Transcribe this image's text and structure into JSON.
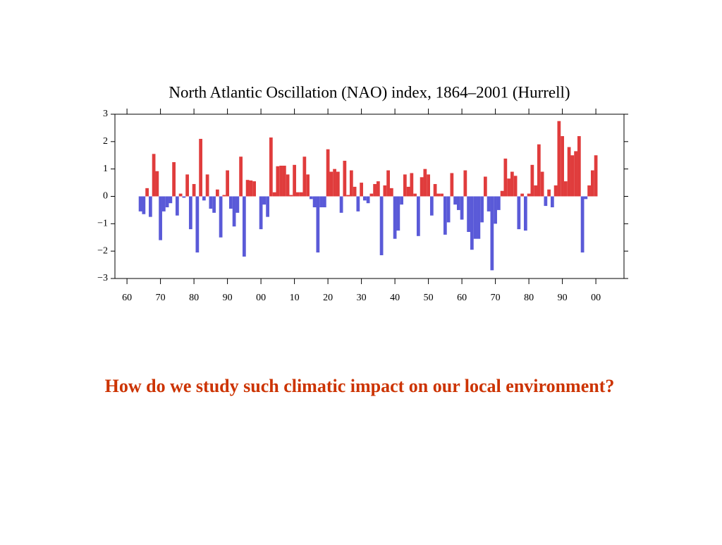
{
  "chart_data": {
    "type": "bar",
    "title": "North Atlantic Oscillation (NAO) index, 1864–2001 (Hurrell)",
    "x": [
      1864,
      1865,
      1866,
      1867,
      1868,
      1869,
      1870,
      1871,
      1872,
      1873,
      1874,
      1875,
      1876,
      1877,
      1878,
      1879,
      1880,
      1881,
      1882,
      1883,
      1884,
      1885,
      1886,
      1887,
      1888,
      1889,
      1890,
      1891,
      1892,
      1893,
      1894,
      1895,
      1896,
      1897,
      1898,
      1899,
      1900,
      1901,
      1902,
      1903,
      1904,
      1905,
      1906,
      1907,
      1908,
      1909,
      1910,
      1911,
      1912,
      1913,
      1914,
      1915,
      1916,
      1917,
      1918,
      1919,
      1920,
      1921,
      1922,
      1923,
      1924,
      1925,
      1926,
      1927,
      1928,
      1929,
      1930,
      1931,
      1932,
      1933,
      1934,
      1935,
      1936,
      1937,
      1938,
      1939,
      1940,
      1941,
      1942,
      1943,
      1944,
      1945,
      1946,
      1947,
      1948,
      1949,
      1950,
      1951,
      1952,
      1953,
      1954,
      1955,
      1956,
      1957,
      1958,
      1959,
      1960,
      1961,
      1962,
      1963,
      1964,
      1965,
      1966,
      1967,
      1968,
      1969,
      1970,
      1971,
      1972,
      1973,
      1974,
      1975,
      1976,
      1977,
      1978,
      1979,
      1980,
      1981,
      1982,
      1983,
      1984,
      1985,
      1986,
      1987,
      1988,
      1989,
      1990,
      1991,
      1992,
      1993,
      1994,
      1995,
      1996,
      1997,
      1998,
      1999,
      2000,
      2001
    ],
    "values": [
      -0.55,
      -0.65,
      0.3,
      -0.75,
      1.55,
      0.92,
      -1.6,
      -0.55,
      -0.4,
      -0.25,
      1.25,
      -0.7,
      0.1,
      -0.05,
      0.8,
      -1.2,
      0.45,
      -2.05,
      2.1,
      -0.15,
      0.8,
      -0.45,
      -0.6,
      0.25,
      -1.5,
      0.05,
      0.95,
      -0.45,
      -1.1,
      -0.6,
      1.45,
      -2.2,
      0.6,
      0.58,
      0.55,
      0,
      -1.2,
      -0.3,
      -0.75,
      2.15,
      0.15,
      1.1,
      1.12,
      1.12,
      0.8,
      0.05,
      1.15,
      0.15,
      0.15,
      1.45,
      0.8,
      -0.1,
      -0.4,
      -2.05,
      -0.4,
      -0.4,
      1.72,
      0.9,
      1.0,
      0.9,
      -0.6,
      1.3,
      0.05,
      0.95,
      0.35,
      -0.55,
      0.5,
      -0.15,
      -0.25,
      0.1,
      0.45,
      0.55,
      -2.15,
      0.4,
      0.95,
      0.3,
      -1.55,
      -1.25,
      -0.3,
      0.8,
      0.35,
      0.85,
      0.1,
      -1.45,
      0.7,
      1.0,
      0.8,
      -0.7,
      0.45,
      0.1,
      0.1,
      -1.4,
      -0.95,
      0.85,
      -0.3,
      -0.5,
      -0.85,
      0.95,
      -1.3,
      -1.95,
      -1.55,
      -1.55,
      -0.95,
      0.72,
      -0.55,
      -2.7,
      -1.0,
      -0.5,
      0.2,
      1.38,
      0.65,
      0.9,
      0.75,
      -1.2,
      0.1,
      -1.25,
      0.1,
      1.15,
      0.4,
      1.9,
      0.9,
      -0.35,
      0.25,
      -0.4,
      0.4,
      2.75,
      2.2,
      0.55,
      1.8,
      1.5,
      1.65,
      2.2,
      -2.05,
      -0.1,
      0.4,
      0.95,
      1.5,
      0
    ],
    "colors": {
      "positive": "#e03c3c",
      "negative": "#5a5ad8"
    },
    "xlim": [
      1856.4,
      2008.4
    ],
    "xticks": [
      {
        "value": 1860,
        "label": "60"
      },
      {
        "value": 1870,
        "label": "70"
      },
      {
        "value": 1880,
        "label": "80"
      },
      {
        "value": 1890,
        "label": "90"
      },
      {
        "value": 1900,
        "label": "00"
      },
      {
        "value": 1910,
        "label": "10"
      },
      {
        "value": 1920,
        "label": "20"
      },
      {
        "value": 1930,
        "label": "30"
      },
      {
        "value": 1940,
        "label": "40"
      },
      {
        "value": 1950,
        "label": "50"
      },
      {
        "value": 1960,
        "label": "60"
      },
      {
        "value": 1970,
        "label": "70"
      },
      {
        "value": 1980,
        "label": "80"
      },
      {
        "value": 1990,
        "label": "90"
      },
      {
        "value": 2000,
        "label": "00"
      }
    ],
    "ylim": [
      -3,
      3
    ],
    "yticks": [
      3,
      2,
      1,
      0,
      {
        "value": -1,
        "label": "−1"
      },
      {
        "value": -2,
        "label": "−2"
      },
      {
        "value": -3,
        "label": "−3"
      }
    ]
  },
  "caption": "How do we study such climatic impact on our local environment?"
}
